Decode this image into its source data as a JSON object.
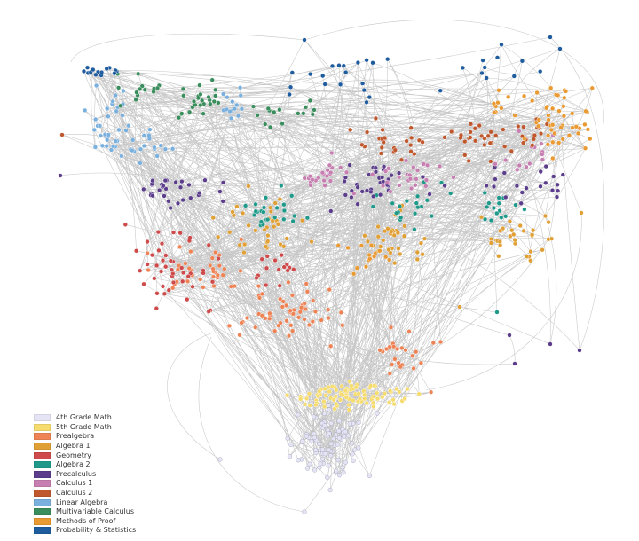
{
  "legend": {
    "items": [
      {
        "label": "4th Grade Math",
        "color": "#e4e4f4"
      },
      {
        "label": "5th Grade Math",
        "color": "#f6dc6e"
      },
      {
        "label": "Prealgebra",
        "color": "#ee8456"
      },
      {
        "label": "Algebra 1",
        "color": "#e0a035"
      },
      {
        "label": "Geometry",
        "color": "#cf4a4a"
      },
      {
        "label": "Algebra 2",
        "color": "#1f9a8a"
      },
      {
        "label": "Precalculus",
        "color": "#5b3d8c"
      },
      {
        "label": "Calculus 1",
        "color": "#c77fb2"
      },
      {
        "label": "Calculus 2",
        "color": "#c0582e"
      },
      {
        "label": "Linear Algebra",
        "color": "#7ab0de"
      },
      {
        "label": "Multivariable Calculus",
        "color": "#3a8d5c"
      },
      {
        "label": "Methods of Proof",
        "color": "#ea9a32"
      },
      {
        "label": "Probability & Statistics",
        "color": "#1f5c9e"
      }
    ]
  },
  "graph": {
    "edge_color": "#b4b4b4",
    "node_outline": "#ffffff"
  }
}
